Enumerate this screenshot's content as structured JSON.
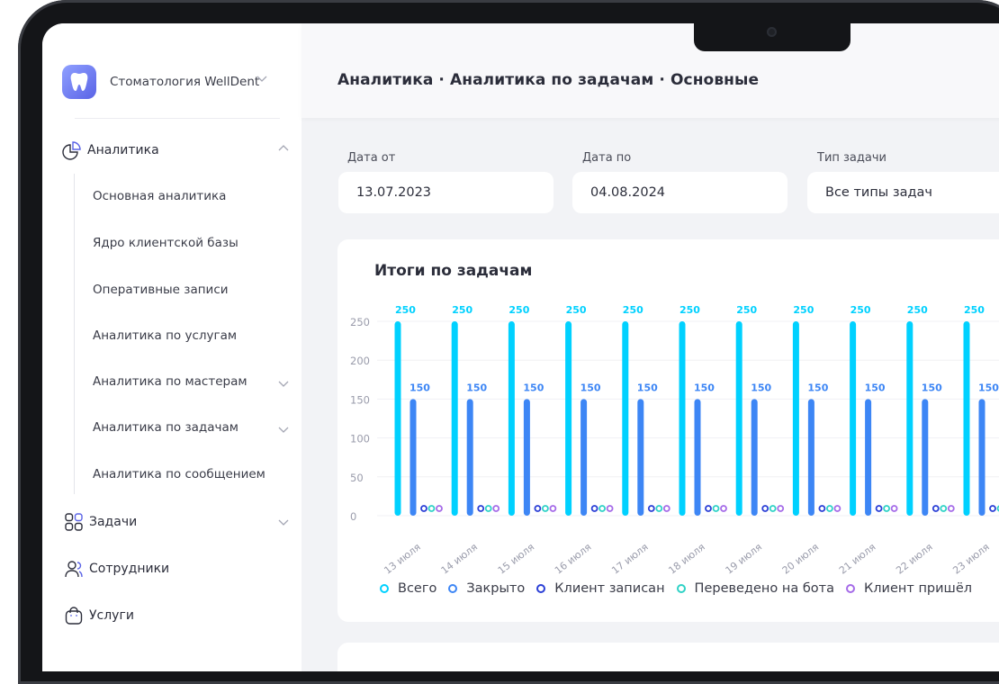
{
  "sidebar": {
    "org_name": "Стоматология WellDent",
    "sections": {
      "analytics": {
        "label": "Аналитика",
        "items": [
          {
            "label": "Основная аналитика"
          },
          {
            "label": "Ядро клиентской базы"
          },
          {
            "label": "Оперативные записи"
          },
          {
            "label": "Аналитика по услугам"
          },
          {
            "label": "Аналитика по мастерам"
          },
          {
            "label": "Аналитика по задачам"
          },
          {
            "label": "Аналитика по сообщением"
          }
        ]
      }
    },
    "nav": [
      {
        "label": "Задачи"
      },
      {
        "label": "Сотрудники"
      },
      {
        "label": "Услуги"
      }
    ]
  },
  "header": {
    "breadcrumb": "Аналитика · Аналитика по задачам · Основные"
  },
  "filters": {
    "date_from": {
      "label": "Дата от",
      "value": "13.07.2023"
    },
    "date_to": {
      "label": "Дата по",
      "value": "04.08.2024"
    },
    "task_type": {
      "label": "Тип задачи",
      "value": "Все типы задач"
    }
  },
  "colors": {
    "accent": "#5a63e6",
    "series_total": "#00d1ff",
    "series_closed": "#3d86f5",
    "series_client_booked": "#2b3fd6",
    "series_bot": "#2fd2c6",
    "series_client_came": "#a56be8"
  },
  "chart_data": {
    "type": "bar",
    "title": "Итоги по задачам",
    "categories": [
      "13 июля",
      "14 июля",
      "15 июля",
      "16 июля",
      "17 июля",
      "18 июля",
      "19 июля",
      "20 июля",
      "21 июля",
      "22 июля",
      "23 июля"
    ],
    "ylim": [
      0,
      250
    ],
    "yticks": [
      0,
      50,
      100,
      150,
      200,
      250
    ],
    "series": [
      {
        "name": "Всего",
        "values": [
          250,
          250,
          250,
          250,
          250,
          250,
          250,
          250,
          250,
          250,
          250
        ]
      },
      {
        "name": "Закрыто",
        "values": [
          150,
          150,
          150,
          150,
          150,
          150,
          150,
          150,
          150,
          150,
          150
        ]
      },
      {
        "name": "Клиент записан",
        "values": [
          0,
          0,
          0,
          0,
          0,
          0,
          0,
          0,
          0,
          0,
          0
        ]
      },
      {
        "name": "Переведено на бота",
        "values": [
          0,
          0,
          0,
          0,
          0,
          0,
          0,
          0,
          0,
          0,
          0
        ]
      },
      {
        "name": "Клиент пришёл",
        "values": [
          0,
          0,
          0,
          0,
          0,
          0,
          0,
          0,
          0,
          0,
          0
        ]
      }
    ],
    "legend_position": "bottom"
  }
}
